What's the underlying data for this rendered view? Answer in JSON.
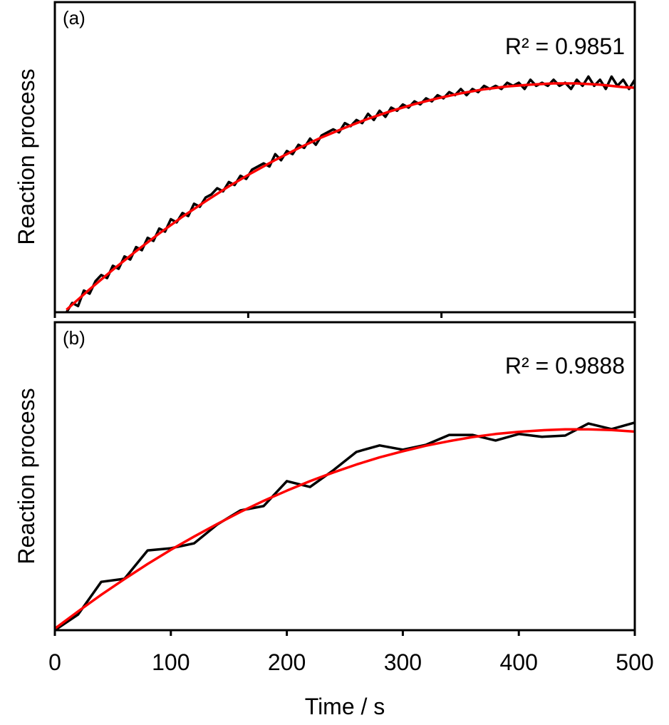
{
  "chart_data": [
    {
      "type": "line",
      "panel_label": "(a)",
      "annotation": "R² = 0.9851",
      "ylabel": "Reaction process",
      "xlabel": "",
      "xlim": [
        0,
        500
      ],
      "ylim": [
        0,
        1
      ],
      "y_ticks_shown": false,
      "x_ticks": [
        0,
        166.7,
        333.3,
        500
      ],
      "x_tick_labels_shown": false,
      "grid": false,
      "series": [
        {
          "color": "#000000",
          "x": [
            10,
            15,
            20,
            25,
            30,
            35,
            40,
            45,
            50,
            55,
            60,
            65,
            70,
            75,
            80,
            85,
            90,
            95,
            100,
            105,
            110,
            115,
            120,
            125,
            130,
            135,
            140,
            145,
            150,
            155,
            160,
            165,
            170,
            175,
            180,
            185,
            190,
            195,
            200,
            205,
            210,
            215,
            220,
            225,
            230,
            235,
            240,
            245,
            250,
            255,
            260,
            265,
            270,
            275,
            280,
            285,
            290,
            295,
            300,
            305,
            310,
            315,
            320,
            325,
            330,
            335,
            340,
            345,
            350,
            355,
            360,
            365,
            370,
            375,
            380,
            385,
            390,
            395,
            400,
            405,
            410,
            415,
            420,
            425,
            430,
            435,
            440,
            445,
            450,
            455,
            460,
            465,
            470,
            475,
            480,
            485,
            490,
            495,
            500
          ],
          "y": [
            0.0,
            0.03,
            0.02,
            0.07,
            0.06,
            0.1,
            0.12,
            0.11,
            0.15,
            0.14,
            0.18,
            0.17,
            0.21,
            0.2,
            0.24,
            0.23,
            0.27,
            0.26,
            0.3,
            0.29,
            0.32,
            0.31,
            0.35,
            0.34,
            0.37,
            0.38,
            0.4,
            0.39,
            0.42,
            0.41,
            0.44,
            0.43,
            0.46,
            0.47,
            0.48,
            0.47,
            0.51,
            0.49,
            0.52,
            0.51,
            0.54,
            0.53,
            0.56,
            0.54,
            0.57,
            0.58,
            0.59,
            0.58,
            0.61,
            0.6,
            0.62,
            0.61,
            0.64,
            0.62,
            0.65,
            0.63,
            0.66,
            0.65,
            0.67,
            0.66,
            0.68,
            0.67,
            0.69,
            0.68,
            0.7,
            0.69,
            0.71,
            0.7,
            0.72,
            0.7,
            0.72,
            0.71,
            0.73,
            0.72,
            0.73,
            0.72,
            0.74,
            0.73,
            0.74,
            0.72,
            0.75,
            0.73,
            0.74,
            0.73,
            0.75,
            0.73,
            0.74,
            0.72,
            0.75,
            0.73,
            0.76,
            0.73,
            0.75,
            0.72,
            0.76,
            0.73,
            0.75,
            0.72,
            0.75
          ]
        },
        {
          "color": "#ff0000",
          "x": [
            10,
            30,
            50,
            70,
            90,
            110,
            130,
            150,
            170,
            190,
            210,
            230,
            250,
            270,
            290,
            310,
            330,
            350,
            370,
            390,
            410,
            430,
            450,
            470,
            490,
            500
          ],
          "y": [
            0.008,
            0.074,
            0.137,
            0.197,
            0.254,
            0.308,
            0.358,
            0.406,
            0.45,
            0.491,
            0.529,
            0.564,
            0.595,
            0.624,
            0.649,
            0.671,
            0.69,
            0.706,
            0.719,
            0.728,
            0.734,
            0.738,
            0.738,
            0.734,
            0.726,
            0.724
          ]
        }
      ]
    },
    {
      "type": "line",
      "panel_label": "(b)",
      "annotation": "R² = 0.9888",
      "ylabel": "Reaction process",
      "xlabel": "Time / s",
      "xlim": [
        0,
        500
      ],
      "ylim": [
        0,
        1
      ],
      "y_ticks_shown": false,
      "x_ticks": [
        0,
        100,
        200,
        300,
        400,
        500
      ],
      "x_tick_labels": [
        "0",
        "100",
        "200",
        "300",
        "400",
        "500"
      ],
      "grid": false,
      "series": [
        {
          "color": "#000000",
          "x": [
            0,
            20,
            40,
            60,
            80,
            100,
            120,
            140,
            160,
            180,
            200,
            220,
            240,
            260,
            280,
            300,
            320,
            340,
            360,
            380,
            400,
            420,
            440,
            460,
            480,
            500
          ],
          "y": [
            0,
            0.051,
            0.157,
            0.167,
            0.259,
            0.266,
            0.282,
            0.343,
            0.389,
            0.403,
            0.484,
            0.465,
            0.519,
            0.579,
            0.6,
            0.586,
            0.602,
            0.634,
            0.634,
            0.616,
            0.637,
            0.628,
            0.632,
            0.671,
            0.653,
            0.674
          ]
        },
        {
          "color": "#ff0000",
          "x": [
            0,
            20,
            40,
            60,
            80,
            100,
            120,
            140,
            160,
            180,
            200,
            220,
            240,
            260,
            280,
            300,
            320,
            340,
            360,
            380,
            400,
            420,
            440,
            460,
            480,
            500
          ],
          "y": [
            0.005,
            0.061,
            0.115,
            0.166,
            0.215,
            0.261,
            0.304,
            0.345,
            0.384,
            0.42,
            0.453,
            0.484,
            0.512,
            0.538,
            0.561,
            0.581,
            0.599,
            0.614,
            0.627,
            0.637,
            0.644,
            0.649,
            0.652,
            0.652,
            0.65,
            0.645
          ]
        }
      ]
    }
  ]
}
